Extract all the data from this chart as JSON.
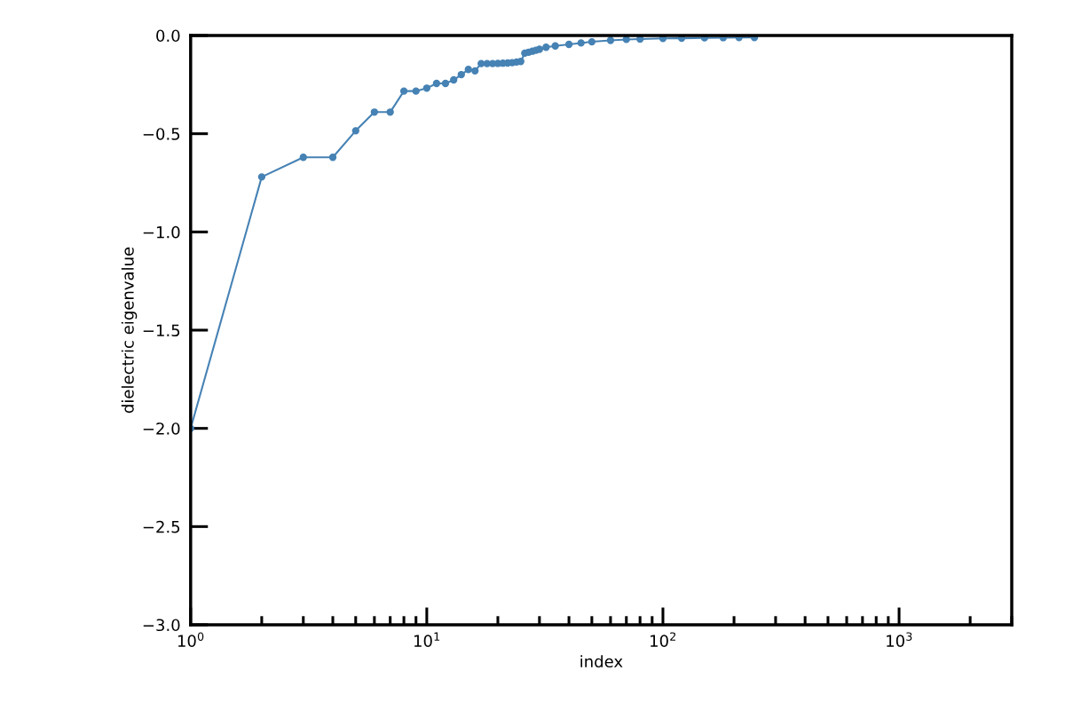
{
  "chart_data": {
    "type": "line",
    "xlabel": "index",
    "ylabel": "dielectric eigenvalue",
    "log": "x",
    "grid": false,
    "marker": "circle",
    "line_style": "solid",
    "x": [
      1,
      2,
      3,
      4,
      5,
      6,
      7,
      8,
      9,
      10,
      11,
      12,
      13,
      14,
      15,
      16,
      17,
      18,
      19,
      20,
      21,
      22,
      23,
      24,
      25,
      26,
      27,
      28,
      29,
      30,
      32,
      35,
      40,
      45,
      50,
      60,
      70,
      80,
      100,
      120,
      150,
      180,
      210,
      244
    ],
    "series": [
      {
        "color": "#4682b4",
        "values": [
          -2.0,
          -0.72,
          -0.62,
          -0.62,
          -0.485,
          -0.39,
          -0.39,
          -0.283,
          -0.283,
          -0.268,
          -0.244,
          -0.244,
          -0.226,
          -0.199,
          -0.173,
          -0.18,
          -0.143,
          -0.143,
          -0.143,
          -0.142,
          -0.141,
          -0.14,
          -0.138,
          -0.135,
          -0.132,
          -0.09,
          -0.085,
          -0.08,
          -0.075,
          -0.07,
          -0.06,
          -0.053,
          -0.045,
          -0.038,
          -0.032,
          -0.025,
          -0.02,
          -0.018,
          -0.015,
          -0.014,
          -0.012,
          -0.011,
          -0.01,
          -0.01
        ]
      }
    ],
    "xlim": [
      1,
      3000
    ],
    "ylim": [
      -3.0,
      0.0
    ],
    "xticks": [
      {
        "value": 1,
        "label": "10$^{0}$"
      },
      {
        "value": 10,
        "label": "10$^{1}$"
      },
      {
        "value": 100,
        "label": "10$^{2}$"
      },
      {
        "value": 1000,
        "label": "10$^{3}$"
      }
    ],
    "yticks": [
      {
        "value": -3.0,
        "label": "−3.0"
      },
      {
        "value": -2.5,
        "label": "−2.5"
      },
      {
        "value": -2.0,
        "label": "−2.0"
      },
      {
        "value": -1.5,
        "label": "−1.5"
      },
      {
        "value": -1.0,
        "label": "−1.0"
      },
      {
        "value": -0.5,
        "label": "−0.5"
      },
      {
        "value": 0.0,
        "label": "0.0"
      }
    ]
  }
}
